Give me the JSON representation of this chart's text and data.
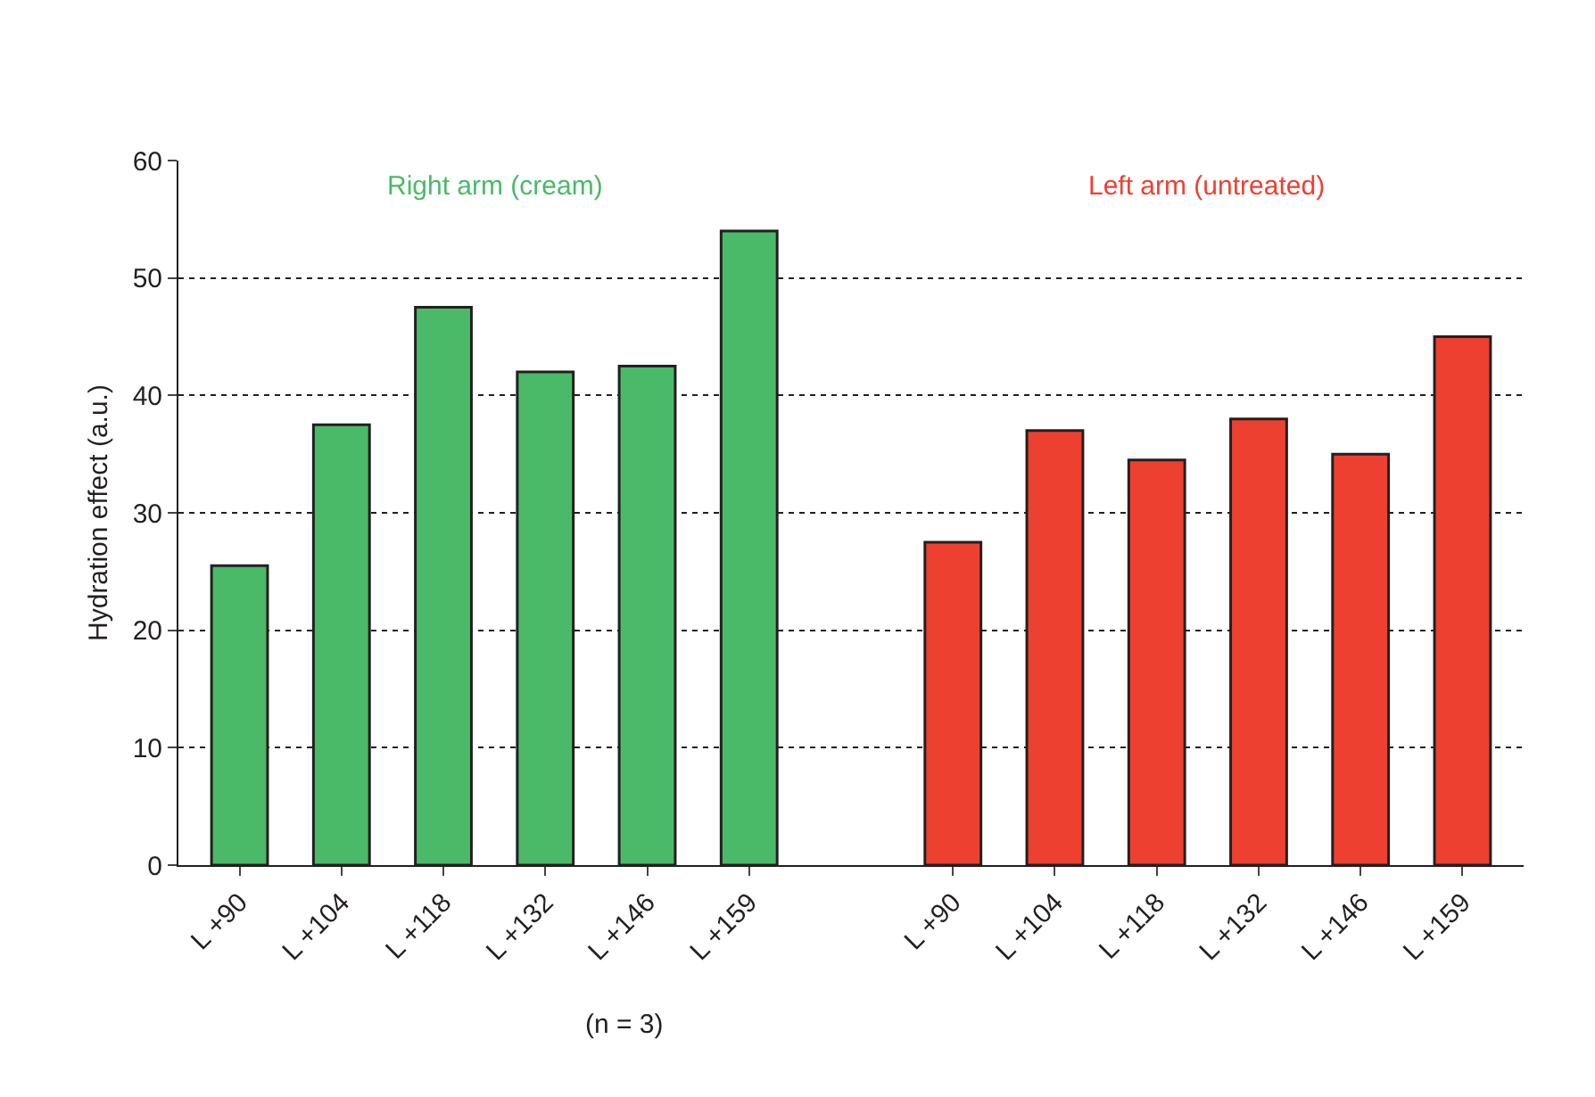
{
  "chart_data": {
    "type": "bar",
    "ylabel": "Hydration effect (a.u.)",
    "categories": [
      "L +90",
      "L +104",
      "L +118",
      "L +132",
      "L +146",
      "L +159",
      null,
      "L +90",
      "L +104",
      "L +118",
      "L +132",
      "L +146",
      "L +159"
    ],
    "series": [
      {
        "name": "Right arm (cream)",
        "color": "#4aba69",
        "values": [
          25.5,
          37.5,
          47.5,
          42,
          42.5,
          54,
          null,
          null,
          null,
          null,
          null,
          null,
          null
        ]
      },
      {
        "name": "Left arm (untreated)",
        "color": "#ee4030",
        "values": [
          null,
          null,
          null,
          null,
          null,
          null,
          null,
          27.5,
          37,
          34.5,
          38,
          35,
          45
        ]
      }
    ],
    "ylim": [
      0,
      60
    ],
    "yticks": [
      0,
      10,
      20,
      30,
      40,
      50,
      60
    ],
    "grid": "y",
    "legend": false,
    "annotations": [
      "(n = 3)"
    ]
  }
}
